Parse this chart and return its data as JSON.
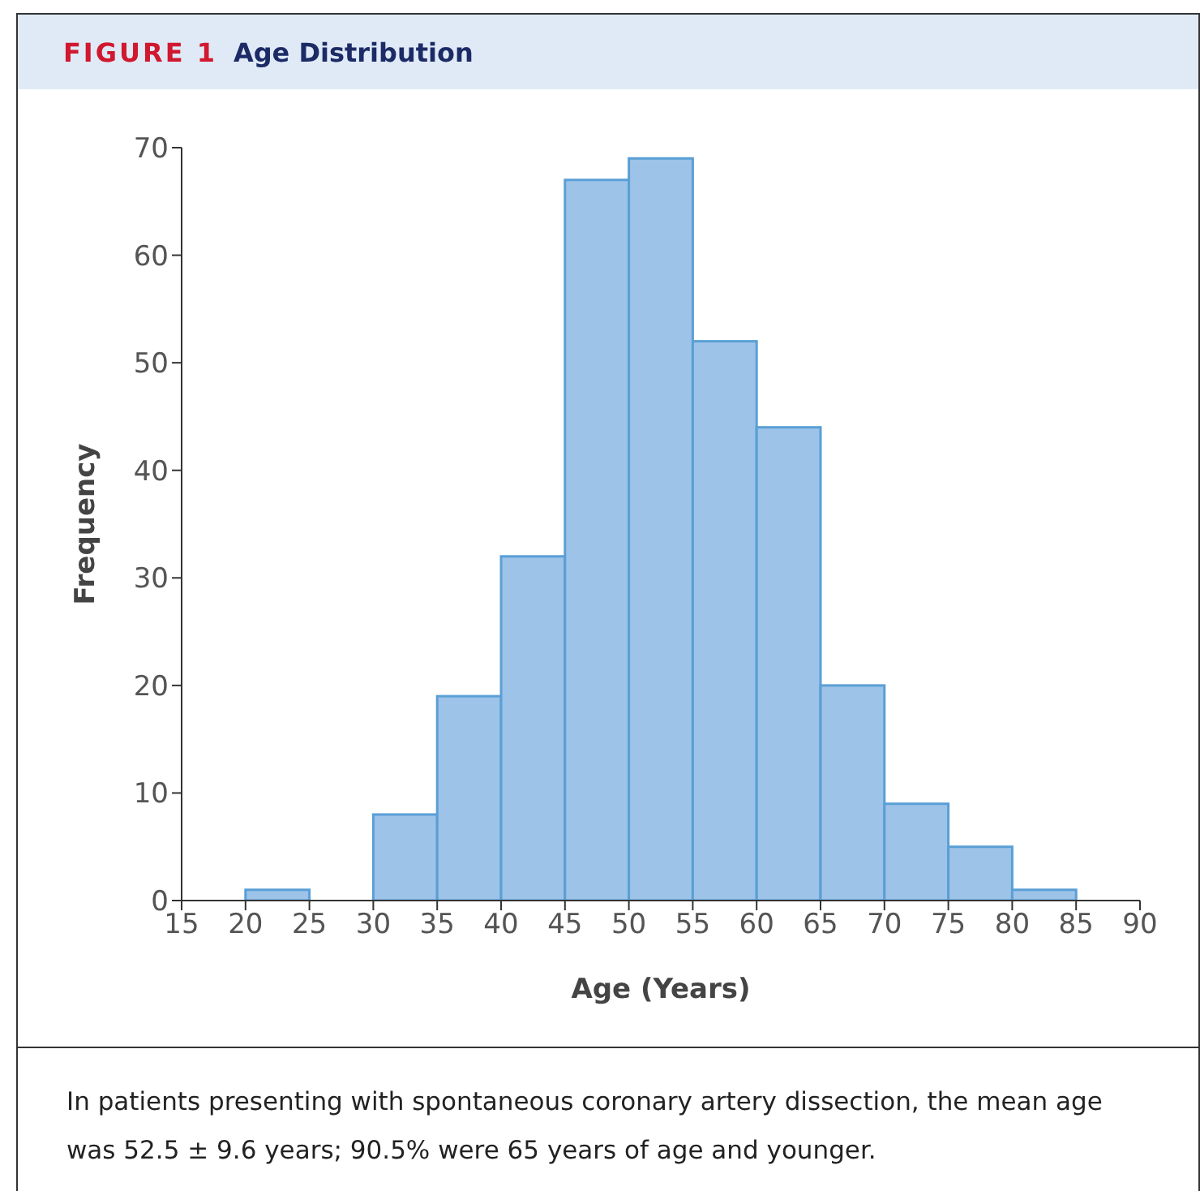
{
  "chart_data": {
    "type": "histogram",
    "title": "FIGURE 1",
    "subtitle": "Age Distribution",
    "xlabel": "Age (Years)",
    "ylabel": "Frequency",
    "bins": [
      20,
      25,
      30,
      35,
      40,
      45,
      50,
      55,
      60,
      65,
      70,
      75,
      80,
      85
    ],
    "values": [
      1,
      0,
      8,
      19,
      32,
      67,
      69,
      52,
      44,
      20,
      9,
      5,
      1
    ],
    "color": "#9dc3e8",
    "xlim": [
      15,
      90
    ],
    "xticks": [
      15,
      20,
      25,
      30,
      35,
      40,
      45,
      50,
      55,
      60,
      65,
      70,
      75,
      80,
      85,
      90
    ],
    "ylim": [
      0,
      70
    ],
    "yticks": [
      0,
      10,
      20,
      30,
      40,
      50,
      60,
      70
    ],
    "grid": false,
    "legend": false,
    "annotations": [
      "In patients presenting with spontaneous coronary artery dissection, the mean age was 52.5 ± 9.6 years; 90.5% were 65 years of age and younger."
    ]
  }
}
